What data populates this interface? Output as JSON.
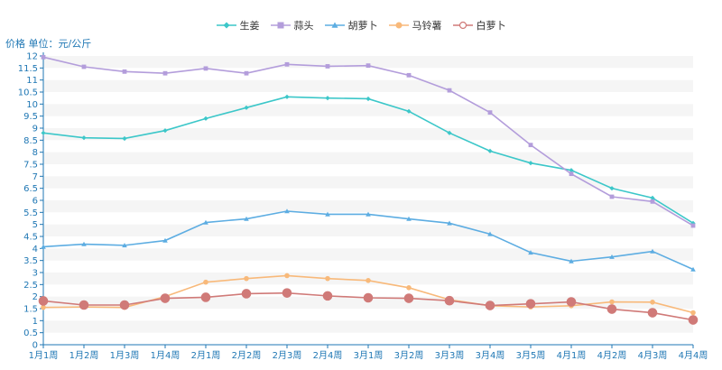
{
  "chart_data": {
    "type": "line",
    "ylabel": "价格 单位：元/公斤",
    "ylim": [
      0,
      12
    ],
    "y_ticks": [
      "0",
      "0.5",
      "1",
      "1.5",
      "2",
      "2.5",
      "3",
      "3.5",
      "4",
      "4.5",
      "5",
      "5.5",
      "6",
      "6.5",
      "7",
      "7.5",
      "8",
      "8.5",
      "9",
      "9.5",
      "10",
      "10.5",
      "11",
      "11.5",
      "12"
    ],
    "categories": [
      "1月1周",
      "1月2周",
      "1月3周",
      "1月4周",
      "2月1周",
      "2月2周",
      "2月3周",
      "2月4周",
      "3月1周",
      "3月2周",
      "3月3周",
      "3月4周",
      "3月5周",
      "4月1周",
      "4月2周",
      "4月3周",
      "4月4周"
    ],
    "grid": "horizontal bands",
    "legend_position": "top-center",
    "series": [
      {
        "name": "生姜",
        "color": "#3cc7c9",
        "marker": "diamond",
        "values": [
          8.8,
          8.6,
          8.57,
          8.9,
          9.4,
          9.85,
          10.3,
          10.25,
          10.22,
          9.7,
          8.8,
          8.05,
          7.55,
          7.25,
          6.5,
          6.1,
          5.05
        ]
      },
      {
        "name": "蒜头",
        "color": "#b39ddb",
        "marker": "square",
        "values": [
          11.95,
          11.55,
          11.35,
          11.28,
          11.48,
          11.28,
          11.65,
          11.57,
          11.6,
          11.2,
          10.57,
          9.65,
          8.3,
          7.1,
          6.15,
          5.95,
          4.95
        ]
      },
      {
        "name": "胡萝卜",
        "color": "#5dade2",
        "marker": "triangle",
        "values": [
          4.07,
          4.18,
          4.13,
          4.33,
          5.08,
          5.23,
          5.55,
          5.42,
          5.42,
          5.23,
          5.05,
          4.6,
          3.83,
          3.47,
          3.65,
          3.88,
          3.13
        ]
      },
      {
        "name": "马铃薯",
        "color": "#f8b97a",
        "marker": "circle",
        "values": [
          1.55,
          1.57,
          1.55,
          2.0,
          2.6,
          2.75,
          2.87,
          2.75,
          2.67,
          2.37,
          1.87,
          1.62,
          1.57,
          1.62,
          1.78,
          1.77,
          1.33
        ]
      },
      {
        "name": "白萝卜",
        "color": "#d07a78",
        "marker": "hollow-circle",
        "values": [
          1.82,
          1.65,
          1.65,
          1.93,
          1.97,
          2.12,
          2.15,
          2.03,
          1.95,
          1.93,
          1.83,
          1.63,
          1.7,
          1.78,
          1.48,
          1.33,
          1.03
        ]
      }
    ]
  }
}
